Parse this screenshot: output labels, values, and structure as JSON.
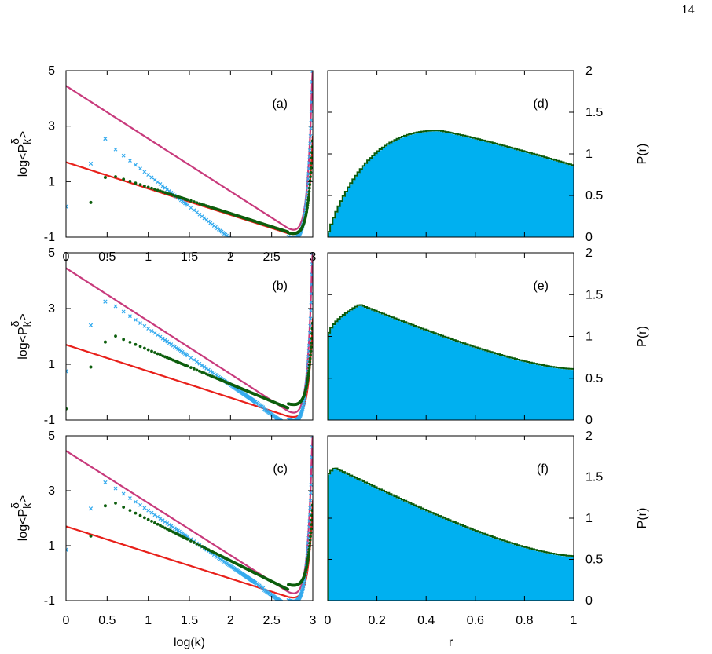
{
  "page_number": "14",
  "colors": {
    "red_line": "#e8201a",
    "magenta_line": "#c83a7c",
    "cyan_points": "#33aaee",
    "green_points": "#0d5e0d",
    "histogram_fill": "#00b0f0",
    "histogram_outline": "#0a5a0a"
  },
  "chart_data": [
    {
      "id": "a",
      "type": "scatter",
      "panel_label": "(a)",
      "ylabel": "log<P_k^δ>",
      "xlabel": "",
      "xlim": [
        0,
        3
      ],
      "ylim": [
        -1,
        5
      ],
      "xticks": [
        "0",
        "0.5",
        "1",
        "1.5",
        "2",
        "2.5",
        "3"
      ],
      "yticks": [
        "-1",
        "1",
        "3",
        "5"
      ],
      "red_curve": {
        "intercept": 1.7,
        "slope": -0.95
      },
      "magenta_curve": {
        "intercept": 4.45,
        "slope": -1.9
      },
      "cyan_points": {
        "first": [
          [
            0,
            0.1
          ],
          [
            0.301,
            1.65
          ],
          [
            0.477,
            2.55
          ]
        ],
        "trend": "near_magenta_slope",
        "end_y": -0.75
      },
      "green_points": {
        "first": [
          [
            0.301,
            0.25
          ],
          [
            0.477,
            1.15
          ]
        ],
        "trend": "follows_red",
        "end_y": -0.95
      }
    },
    {
      "id": "b",
      "type": "scatter",
      "panel_label": "(b)",
      "ylabel": "log<P_k^δ>",
      "xlabel": "",
      "xlim": [
        0,
        3
      ],
      "ylim": [
        -1,
        5
      ],
      "xticks": [],
      "yticks": [
        "-1",
        "1",
        "3",
        "5"
      ],
      "red_curve": {
        "intercept": 1.7,
        "slope": -0.95
      },
      "magenta_curve": {
        "intercept": 4.45,
        "slope": -1.9
      },
      "cyan_points": {
        "first": [
          [
            0,
            0.75
          ],
          [
            0.301,
            2.4
          ],
          [
            0.477,
            3.25
          ]
        ],
        "end_y": -0.5
      },
      "green_points": {
        "first": [
          [
            0,
            -0.6
          ],
          [
            0.301,
            0.9
          ],
          [
            0.477,
            1.8
          ]
        ],
        "end_y": -0.65
      }
    },
    {
      "id": "c",
      "type": "scatter",
      "panel_label": "(c)",
      "ylabel": "log<P_k^δ>",
      "xlabel": "log(k)",
      "xlim": [
        0,
        3
      ],
      "ylim": [
        -1,
        5
      ],
      "xticks": [
        "0",
        "0.5",
        "1",
        "1.5",
        "2",
        "2.5",
        "3"
      ],
      "yticks": [
        "-1",
        "1",
        "3",
        "5"
      ],
      "red_curve": {
        "intercept": 1.7,
        "slope": -0.95
      },
      "magenta_curve": {
        "intercept": 4.45,
        "slope": -1.9
      },
      "cyan_points": {
        "first": [
          [
            0,
            0.85
          ],
          [
            0.301,
            2.35
          ],
          [
            0.477,
            3.3
          ]
        ],
        "end_y": -0.55
      },
      "green_points": {
        "first": [
          [
            0.301,
            1.35
          ],
          [
            0.477,
            2.45
          ]
        ],
        "end_y": -0.6
      }
    },
    {
      "id": "d",
      "type": "histogram",
      "panel_label": "(d)",
      "ylabel": "P(r)",
      "xlabel": "",
      "xlim": [
        0,
        1
      ],
      "ylim": [
        0,
        2
      ],
      "xticks": [],
      "yticks": [
        "0",
        "0.5",
        "1",
        "1.5",
        "2"
      ],
      "shape": {
        "a": 3.2,
        "b": 1.75,
        "peak_y": 1.27,
        "end_y": 0.85
      }
    },
    {
      "id": "e",
      "type": "histogram",
      "panel_label": "(e)",
      "ylabel": "P(r)",
      "xlabel": "",
      "xlim": [
        0,
        1
      ],
      "ylim": [
        0,
        2
      ],
      "xticks": [],
      "yticks": [
        "0",
        "0.5",
        "1",
        "1.5",
        "2"
      ],
      "shape": {
        "start_y": 0.95,
        "peak_x": 0.13,
        "peak_y": 1.37,
        "end_y": 0.6
      }
    },
    {
      "id": "f",
      "type": "histogram",
      "panel_label": "(f)",
      "ylabel": "P(r)",
      "xlabel": "r",
      "xlim": [
        0,
        1
      ],
      "ylim": [
        0,
        2
      ],
      "xticks": [
        "0",
        "0.2",
        "0.4",
        "0.6",
        "0.8",
        "1"
      ],
      "yticks": [
        "0",
        "0.5",
        "1",
        "1.5",
        "2"
      ],
      "shape": {
        "start_y": 1.48,
        "peak_x": 0.03,
        "peak_y": 1.6,
        "end_y": 0.53
      }
    }
  ]
}
